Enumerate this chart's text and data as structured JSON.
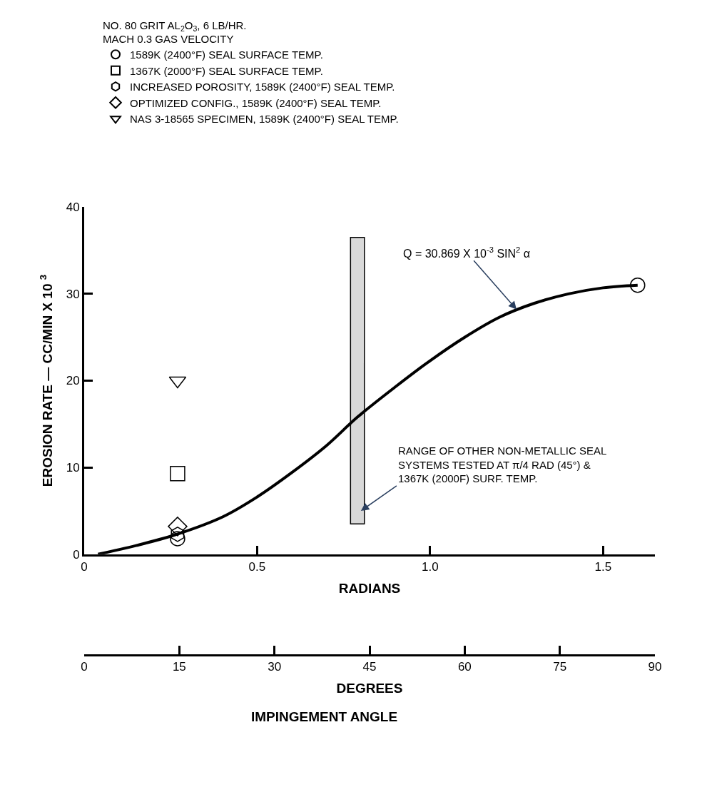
{
  "chart_data": {
    "type": "scatter",
    "legend_title": "NO. 80 GRIT AL$_{2}$O$_{3}$, 6 LB/HR.\nMACH 0.3 GAS VELOCITY",
    "xlabel": "RADIANS",
    "ylabel": "EROSION RATE — CC/MIN X 10 $^{3}$",
    "x2label": "DEGREES",
    "xlim": [
      0,
      1.65
    ],
    "xticks": [
      0,
      0.5,
      {
        "value": 1.0,
        "label": "1.0"
      },
      1.5
    ],
    "x2lim": [
      0,
      90
    ],
    "x2ticks": [
      0,
      15,
      30,
      45,
      60,
      75,
      90
    ],
    "ylim": [
      0,
      40
    ],
    "yticks": [
      0,
      10,
      20,
      30,
      40
    ],
    "grid": false,
    "legend": "top",
    "series": [
      {
        "type": "line",
        "color": "#000000",
        "marker": "none",
        "x": [
          0.04,
          0.15,
          0.26,
          0.4,
          0.5,
          0.6,
          0.7,
          0.79,
          0.9,
          1.0,
          1.1,
          1.2,
          1.3,
          1.4,
          1.5,
          1.6
        ],
        "values": [
          0,
          1.0,
          2.2,
          4.3,
          6.6,
          9.4,
          12.5,
          15.8,
          19.3,
          22.3,
          25.0,
          27.3,
          28.9,
          30.0,
          30.7,
          31.0
        ]
      },
      {
        "type": "bar",
        "color": "#d9d9d9",
        "x": [
          0.79
        ],
        "base": [
          3.5
        ],
        "values": [
          33
        ]
      },
      {
        "type": "scatter",
        "name": "1589K (2400°F) SEAL SURFACE TEMP.",
        "color": "#000000",
        "marker": "circle",
        "x": [
          0.27,
          1.6
        ],
        "values": [
          1.8,
          31.0
        ]
      },
      {
        "type": "scatter",
        "name": "1367K (2000°F) SEAL SURFACE TEMP.",
        "color": "#000000",
        "marker": "square",
        "x": [
          0.27
        ],
        "values": [
          9.3
        ]
      },
      {
        "type": "scatter",
        "name": "INCREASED POROSITY, 1589K (2400°F) SEAL TEMP.",
        "color": "#000000",
        "x": [
          0.27
        ],
        "values": [
          2.3
        ]
      },
      {
        "type": "scatter",
        "name": "OPTIMIZED CONFIG., 1589K (2400°F) SEAL TEMP.",
        "color": "#000000",
        "marker": "diamond",
        "x": [
          0.27
        ],
        "values": [
          3.2
        ]
      },
      {
        "type": "scatter",
        "name": "NAS 3-18565 SPECIMEN, 1589K (2400°F) SEAL TEMP.",
        "color": "#000000",
        "marker": "triangle",
        "x": [
          0.27
        ],
        "values": [
          20.0
        ]
      }
    ],
    "annotations": [
      {
        "text": "Q = 30.869 X 10$^{-3}$ SIN$^{2}$ α",
        "x": 1.25,
        "y": 28.2
      },
      {
        "text": "RANGE OF OTHER NON-METALLIC SEAL\nSYSTEMS TESTED AT π/4 RAD (45°) &\n1367K (2000F) SURF. TEMP.",
        "x": 0.8,
        "y": 5
      },
      "IMPINGEMENT ANGLE"
    ]
  }
}
